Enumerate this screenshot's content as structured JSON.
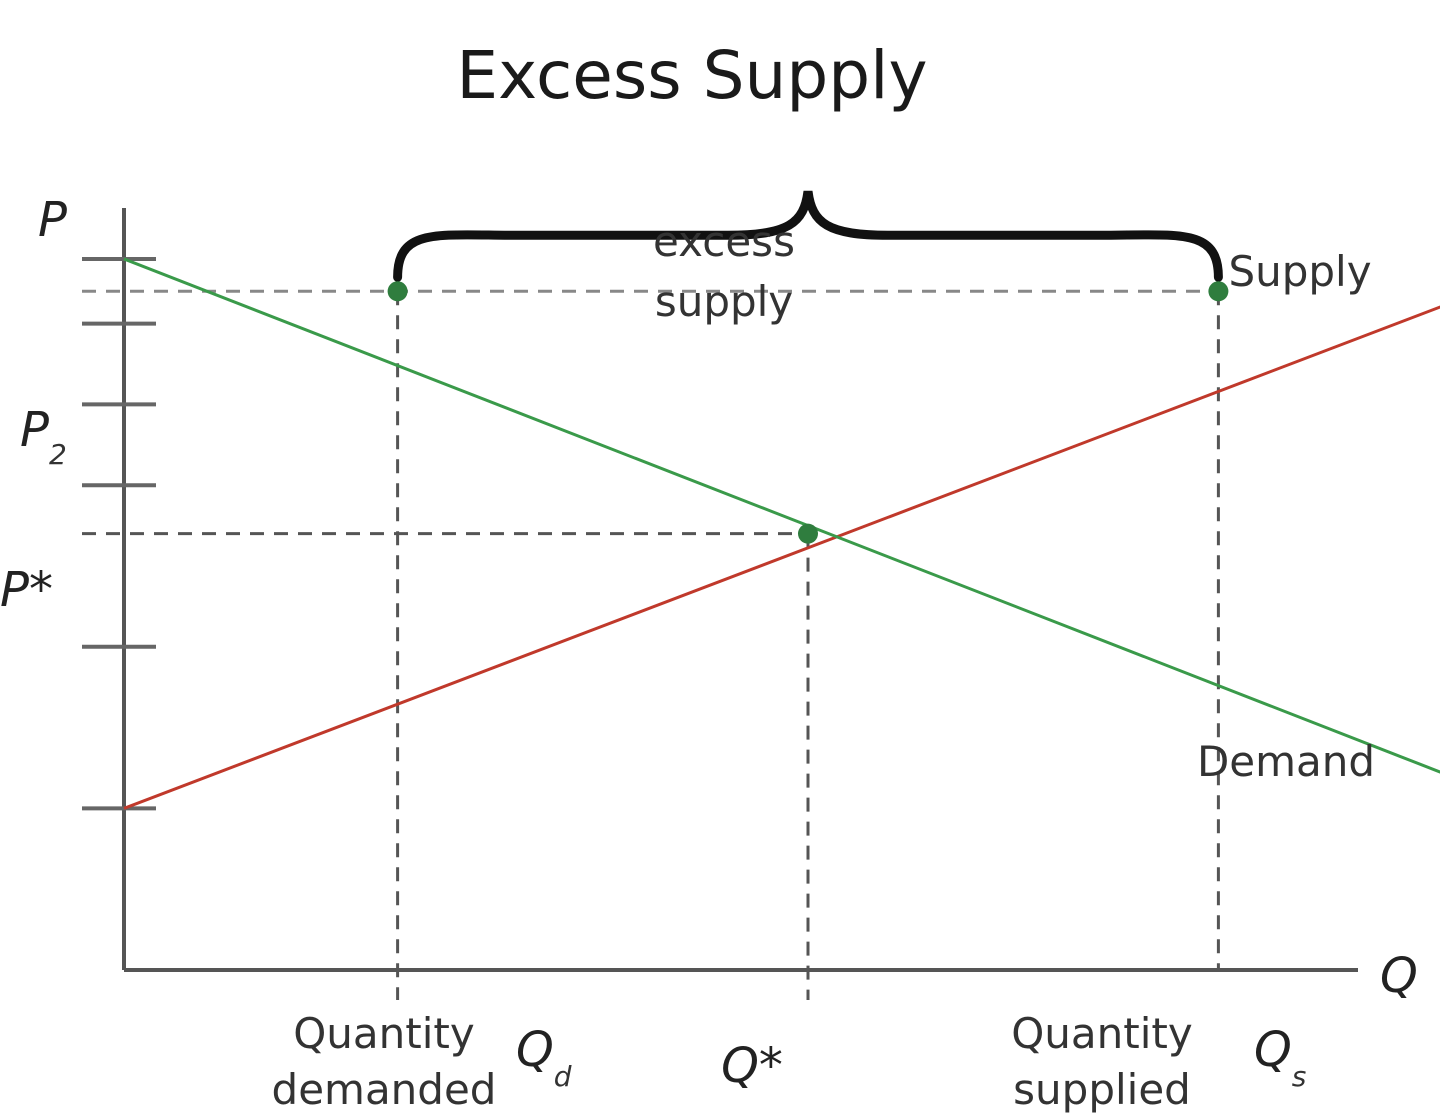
{
  "chart_data": {
    "type": "line",
    "title": "Excess Supply",
    "xlabel": "Q",
    "ylabel": "P",
    "xlim": [
      0,
      10
    ],
    "ylim": [
      0,
      10
    ],
    "grid": false,
    "series": [
      {
        "name": "Supply",
        "color": "#c0392b",
        "points": [
          [
            0,
            2
          ],
          [
            10,
            8.45
          ]
        ]
      },
      {
        "name": "Demand",
        "color": "#3a9a4a",
        "points": [
          [
            0,
            8.8
          ],
          [
            10,
            2.2
          ]
        ]
      }
    ],
    "y_ticks": [
      2,
      4,
      6,
      7,
      8,
      8.8
    ],
    "reference_levels": {
      "p2": {
        "label": "P",
        "sub": "2",
        "value": 8.4
      },
      "pstar": {
        "label": "P*",
        "value": 5.4
      }
    },
    "reference_quantities": {
      "qd": {
        "label": "Q",
        "sub": "d",
        "value": 2,
        "caption": [
          "Quantity",
          "demanded"
        ]
      },
      "qstar": {
        "label": "Q*",
        "value": 5
      },
      "qs": {
        "label": "Q",
        "sub": "s",
        "value": 8,
        "caption": [
          "Quantity",
          "supplied"
        ]
      }
    },
    "points": [
      {
        "name": "demand-at-p2",
        "x": 2,
        "y": 8.4
      },
      {
        "name": "equilibrium",
        "x": 5,
        "y": 5.4
      },
      {
        "name": "supply-at-p2",
        "x": 8,
        "y": 8.4
      }
    ],
    "annotations": {
      "excess": [
        "excess",
        "supply"
      ],
      "supply_label": "Supply",
      "demand_label": "Demand"
    }
  }
}
